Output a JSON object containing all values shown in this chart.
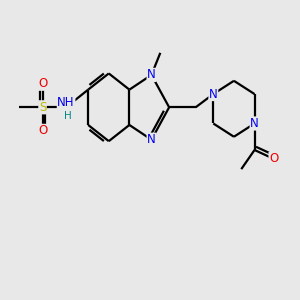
{
  "background_color": "#e8e8e8",
  "atom_colors": {
    "N": "#0000ee",
    "O": "#ee0000",
    "S": "#bbbb00",
    "H": "#008888"
  },
  "bond_color": "#000000",
  "bond_width": 1.6,
  "figsize": [
    3.0,
    3.0
  ],
  "dpi": 100,
  "xlim": [
    0,
    10
  ],
  "ylim": [
    0,
    10
  ]
}
